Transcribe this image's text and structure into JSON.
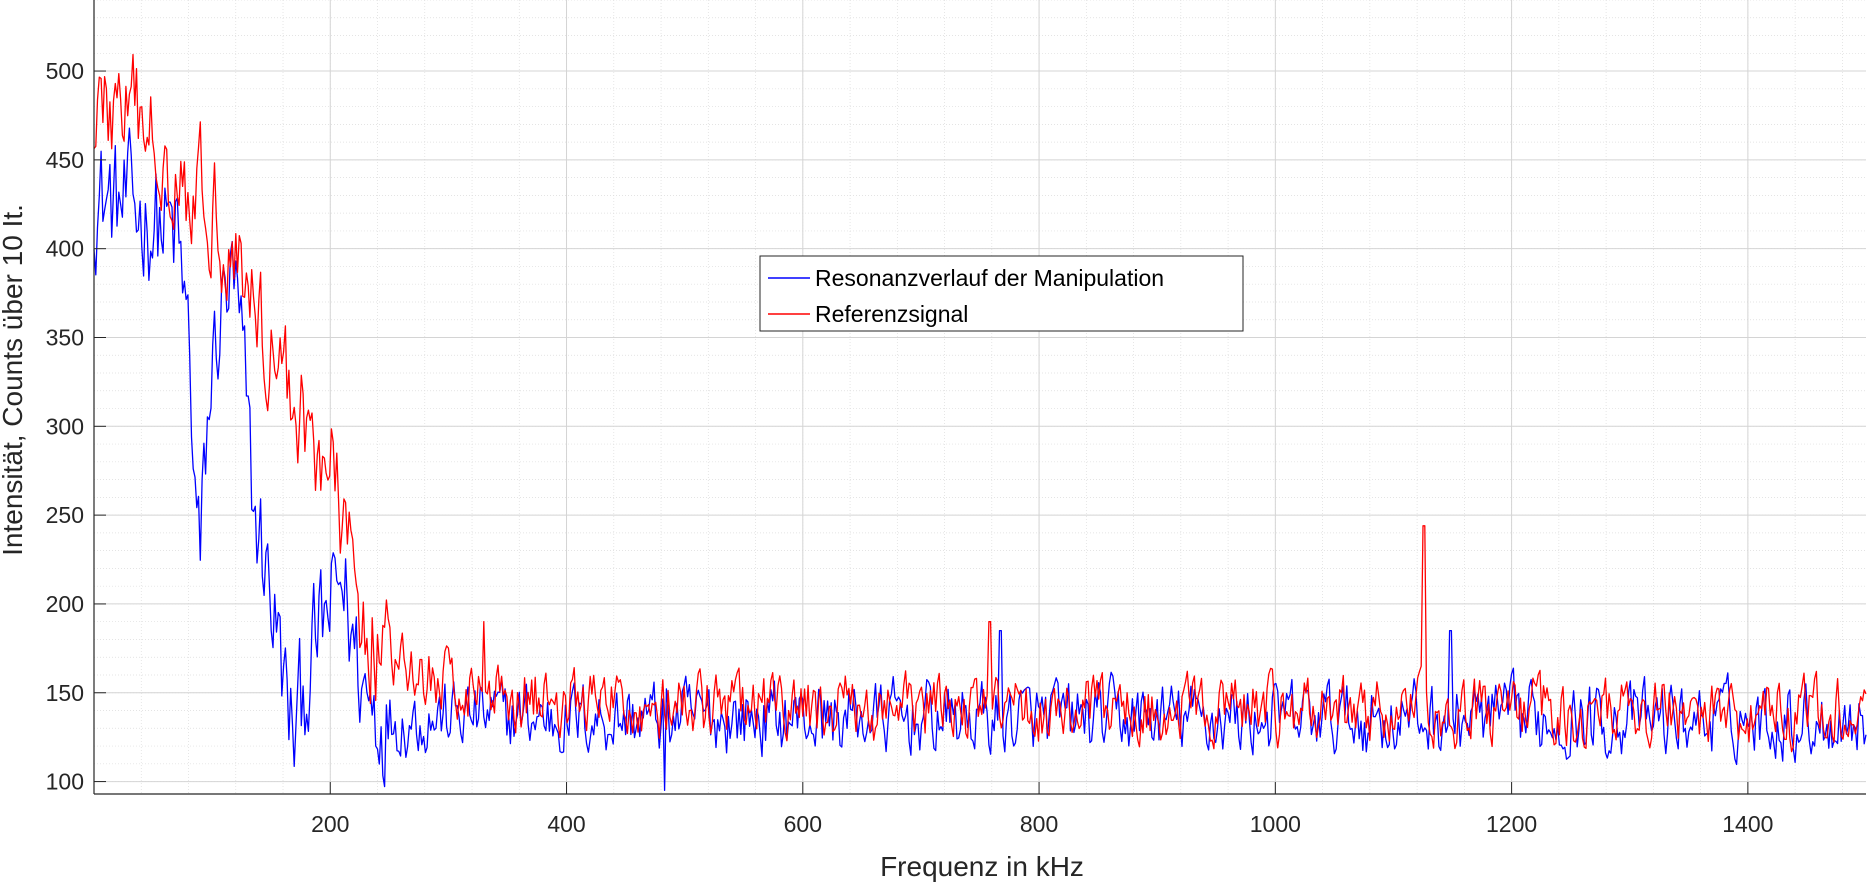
{
  "chart_data": {
    "type": "line",
    "title": "",
    "xlabel": "Frequenz in kHz",
    "ylabel": "Intensität, Counts über 10 It.",
    "xlim": [
      0,
      1500
    ],
    "ylim": [
      93,
      540
    ],
    "xticks": [
      "200",
      "400",
      "600",
      "800",
      "1000",
      "1200",
      "1400"
    ],
    "yticks": [
      "100",
      "150",
      "200",
      "250",
      "300",
      "350",
      "400",
      "450",
      "500"
    ],
    "grid": true,
    "minor_grid": true,
    "legend_position": "upper-center",
    "series": [
      {
        "name": "Resonanzverlauf der Manipulation",
        "color": "#0000ff",
        "anchors": [
          [
            0,
            430
          ],
          [
            20,
            425
          ],
          [
            40,
            420
          ],
          [
            60,
            412
          ],
          [
            70,
            405
          ],
          [
            80,
            350
          ],
          [
            85,
            270
          ],
          [
            90,
            220
          ],
          [
            95,
            290
          ],
          [
            100,
            330
          ],
          [
            105,
            355
          ],
          [
            110,
            370
          ],
          [
            115,
            380
          ],
          [
            120,
            370
          ],
          [
            125,
            340
          ],
          [
            130,
            300
          ],
          [
            135,
            250
          ],
          [
            140,
            240
          ],
          [
            150,
            205
          ],
          [
            160,
            160
          ],
          [
            165,
            135
          ],
          [
            170,
            125
          ],
          [
            180,
            160
          ],
          [
            190,
            180
          ],
          [
            200,
            195
          ],
          [
            210,
            215
          ],
          [
            220,
            175
          ],
          [
            230,
            150
          ],
          [
            240,
            140
          ],
          [
            260,
            135
          ],
          [
            300,
            137
          ],
          [
            400,
            136
          ],
          [
            1500,
            135
          ]
        ],
        "noise_amplitude": 22,
        "spikes": [
          [
            767,
            185
          ],
          [
            1148,
            185
          ],
          [
            483,
            95
          ]
        ]
      },
      {
        "name": "Referenzsignal",
        "color": "#ff0000",
        "anchors": [
          [
            0,
            480
          ],
          [
            30,
            475
          ],
          [
            60,
            455
          ],
          [
            80,
            440
          ],
          [
            100,
            425
          ],
          [
            120,
            400
          ],
          [
            140,
            360
          ],
          [
            160,
            330
          ],
          [
            180,
            300
          ],
          [
            200,
            275
          ],
          [
            210,
            245
          ],
          [
            225,
            200
          ],
          [
            240,
            175
          ],
          [
            260,
            162
          ],
          [
            300,
            155
          ],
          [
            350,
            150
          ],
          [
            400,
            145
          ],
          [
            500,
            141
          ],
          [
            1500,
            139
          ]
        ],
        "noise_amplitude": 20,
        "spikes": [
          [
            1126,
            244
          ],
          [
            758,
            190
          ],
          [
            330,
            190
          ]
        ]
      }
    ]
  }
}
